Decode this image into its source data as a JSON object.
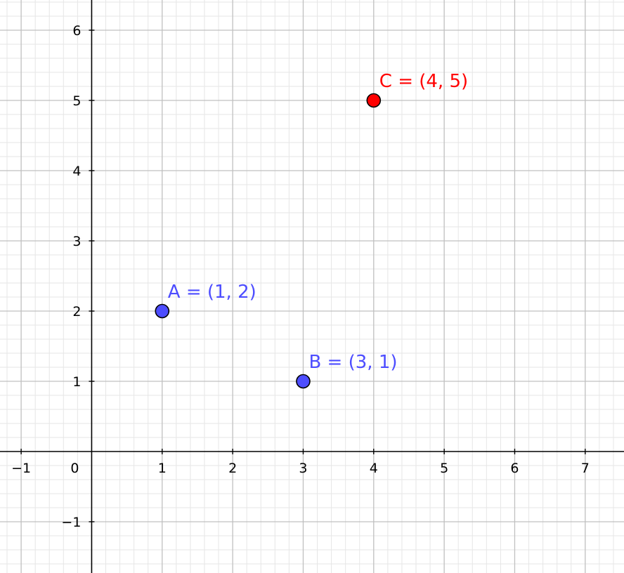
{
  "chart_data": {
    "type": "scatter",
    "xlim": [
      -1.3,
      7.55
    ],
    "ylim": [
      -1.73,
      6.43
    ],
    "grid": true,
    "minor_grid": true,
    "x_ticks": [
      "-1",
      "0",
      "1",
      "2",
      "3",
      "4",
      "5",
      "6",
      "7"
    ],
    "y_ticks": [
      "-1",
      "1",
      "2",
      "3",
      "4",
      "5",
      "6"
    ],
    "points": [
      {
        "name": "A",
        "x": 1,
        "y": 2,
        "label": "A = (1, 2)",
        "color": "#4d4dff"
      },
      {
        "name": "B",
        "x": 3,
        "y": 1,
        "label": "B = (3, 1)",
        "color": "#4d4dff"
      },
      {
        "name": "C",
        "x": 4,
        "y": 5,
        "label": "C = (4, 5)",
        "color": "#ff0000"
      }
    ]
  }
}
